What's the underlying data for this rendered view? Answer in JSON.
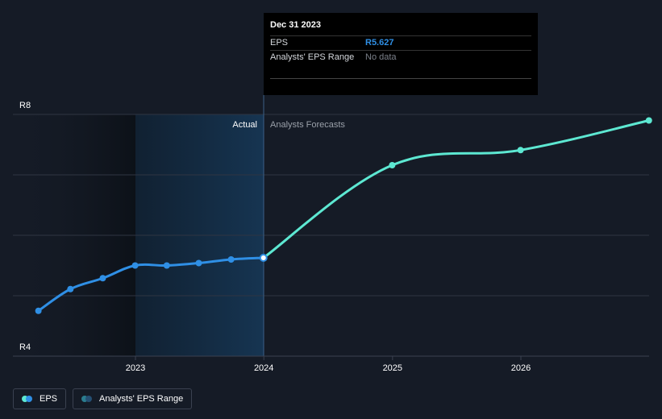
{
  "chart_data": {
    "type": "line",
    "y_axis": {
      "min_label": "R4",
      "max_label": "R8",
      "ylim": [
        4,
        8
      ]
    },
    "x_ticks": [
      "2023",
      "2024",
      "2025",
      "2026"
    ],
    "regions": {
      "actual_label": "Actual",
      "forecast_label": "Analysts Forecasts"
    },
    "series": [
      {
        "name": "EPS",
        "kind": "actual",
        "color": "#2f8fe5",
        "points": [
          {
            "x": "2022-03-31",
            "y": 4.75
          },
          {
            "x": "2022-06-30",
            "y": 5.11
          },
          {
            "x": "2022-09-30",
            "y": 5.29
          },
          {
            "x": "2022-12-31",
            "y": 5.5
          },
          {
            "x": "2023-03-31",
            "y": 5.5
          },
          {
            "x": "2023-06-30",
            "y": 5.54
          },
          {
            "x": "2023-09-30",
            "y": 5.6
          },
          {
            "x": "2023-12-31",
            "y": 5.627
          }
        ]
      },
      {
        "name": "EPS",
        "kind": "forecast",
        "color": "#5de8d2",
        "points": [
          {
            "x": "2023-12-31",
            "y": 5.627
          },
          {
            "x": "2024-12-31",
            "y": 7.16
          },
          {
            "x": "2025-12-31",
            "y": 7.41
          },
          {
            "x": "2026-12-31",
            "y": 7.9
          }
        ]
      }
    ],
    "highlighted_point": {
      "x": "2023-12-31",
      "y": 5.627
    }
  },
  "tooltip": {
    "date": "Dec 31 2023",
    "rows": [
      {
        "label": "EPS",
        "value": "R5.627"
      },
      {
        "label": "Analysts' EPS Range",
        "value": "No data"
      }
    ]
  },
  "legend": {
    "items": [
      {
        "label": "EPS",
        "colors": [
          "#5de8d2",
          "#2f8fe5"
        ]
      },
      {
        "label": "Analysts' EPS Range",
        "colors": [
          "#2b7d8f",
          "#254f73"
        ]
      }
    ]
  },
  "colors": {
    "background": "#151b26",
    "actual_band": "#142a3f",
    "grid": "#2f3542",
    "past_shade": "#0f141c"
  }
}
